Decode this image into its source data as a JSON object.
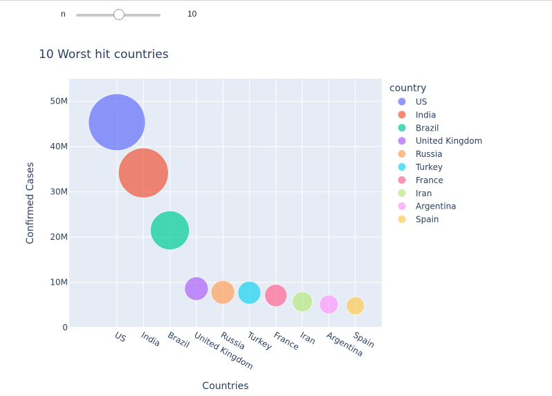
{
  "slider": {
    "label": "n",
    "value": "10",
    "min": 1,
    "max": 20
  },
  "chart_data": {
    "type": "scatter",
    "title": "10 Worst hit countries",
    "xlabel": "Countries",
    "ylabel": "Confirmed Cases",
    "legend_title": "country",
    "legend_position": "right",
    "grid": true,
    "ylim": [
      0,
      55000000
    ],
    "yticks": [
      0,
      10000000,
      20000000,
      30000000,
      40000000,
      50000000
    ],
    "ytick_labels": [
      "0",
      "10M",
      "20M",
      "30M",
      "40M",
      "50M"
    ],
    "categories": [
      "US",
      "India",
      "Brazil",
      "United Kingdom",
      "Russia",
      "Turkey",
      "France",
      "Iran",
      "Argentina",
      "Spain"
    ],
    "values": [
      45400000,
      34200000,
      21500000,
      8600000,
      7800000,
      7700000,
      7100000,
      5700000,
      5100000,
      4800000
    ],
    "bubble_radius_px": [
      41,
      36,
      28,
      17,
      17,
      16.5,
      16,
      14.5,
      13.5,
      13
    ],
    "colors": [
      "#636efa",
      "#EF553B",
      "#00cc96",
      "#ab63fa",
      "#FFA15A",
      "#19d3f3",
      "#FF6692",
      "#B6E880",
      "#FF97FF",
      "#FECB52"
    ]
  }
}
